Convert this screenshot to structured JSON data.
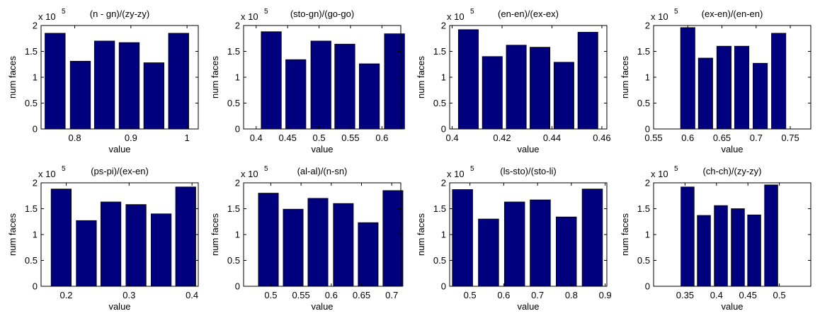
{
  "figure": {
    "bar_color": "#00007f",
    "background": "#ffffff",
    "axes_color": "#000000"
  },
  "chart_data": [
    {
      "type": "bar",
      "title": "(n - gn)/(zy-zy)",
      "xlabel": "value",
      "ylabel": "num faces",
      "y_multiplier_base": "x 10",
      "y_multiplier_exp": "5",
      "xlim": [
        0.74,
        1.02
      ],
      "ylim": [
        0,
        2
      ],
      "x_ticks": [
        0.8,
        0.9,
        1
      ],
      "x_tick_labels": [
        "0.8",
        "0.9",
        "1"
      ],
      "y_ticks": [
        0,
        0.5,
        1,
        1.5,
        2
      ],
      "y_tick_labels": [
        "0",
        "0.5",
        "1",
        "1.5",
        "2"
      ],
      "bar_width": 0.036,
      "x": [
        0.765,
        0.81,
        0.853,
        0.897,
        0.941,
        0.985
      ],
      "values": [
        1.85,
        1.31,
        1.7,
        1.67,
        1.28,
        1.85
      ]
    },
    {
      "type": "bar",
      "title": "(sto-gn)/(go-go)",
      "xlabel": "value",
      "ylabel": "num faces",
      "y_multiplier_base": "x 10",
      "y_multiplier_exp": "5",
      "xlim": [
        0.38,
        0.63
      ],
      "ylim": [
        0,
        2
      ],
      "x_ticks": [
        0.4,
        0.45,
        0.5,
        0.55,
        0.6
      ],
      "x_tick_labels": [
        "0.4",
        "0.45",
        "0.5",
        "0.55",
        "0.6"
      ],
      "y_ticks": [
        0,
        0.5,
        1,
        1.5,
        2
      ],
      "y_tick_labels": [
        "0",
        "0.5",
        "1",
        "1.5",
        "2"
      ],
      "bar_width": 0.032,
      "x": [
        0.424,
        0.463,
        0.503,
        0.541,
        0.58,
        0.62
      ],
      "values": [
        1.88,
        1.34,
        1.7,
        1.64,
        1.26,
        1.84
      ]
    },
    {
      "type": "bar",
      "title": "(en-en)/(ex-ex)",
      "xlabel": "value",
      "ylabel": "num faces",
      "y_multiplier_base": "x 10",
      "y_multiplier_exp": "5",
      "xlim": [
        0.399,
        0.462
      ],
      "ylim": [
        0,
        2
      ],
      "x_ticks": [
        0.4,
        0.42,
        0.44,
        0.46
      ],
      "x_tick_labels": [
        "0.4",
        "0.42",
        "0.44",
        "0.46"
      ],
      "y_ticks": [
        0,
        0.5,
        1,
        1.5,
        2
      ],
      "y_tick_labels": [
        "0",
        "0.5",
        "1",
        "1.5",
        "2"
      ],
      "bar_width": 0.008,
      "x": [
        0.4065,
        0.4161,
        0.4257,
        0.4352,
        0.4448,
        0.4544
      ],
      "values": [
        1.92,
        1.4,
        1.62,
        1.58,
        1.29,
        1.87
      ]
    },
    {
      "type": "bar",
      "title": "(ex-en)/(en-en)",
      "xlabel": "value",
      "ylabel": "num faces",
      "y_multiplier_base": "x 10",
      "y_multiplier_exp": "5",
      "xlim": [
        0.55,
        0.78
      ],
      "ylim": [
        0,
        2
      ],
      "x_ticks": [
        0.55,
        0.6,
        0.65,
        0.7,
        0.75
      ],
      "x_tick_labels": [
        "0.55",
        "0.6",
        "0.65",
        "0.7",
        "0.75"
      ],
      "y_ticks": [
        0,
        0.5,
        1,
        1.5,
        2
      ],
      "y_tick_labels": [
        "0",
        "0.5",
        "1",
        "1.5",
        "2"
      ],
      "bar_width": 0.021,
      "x": [
        0.6,
        0.626,
        0.653,
        0.679,
        0.706,
        0.733
      ],
      "values": [
        1.96,
        1.37,
        1.6,
        1.6,
        1.27,
        1.85
      ]
    },
    {
      "type": "bar",
      "title": "(ps-pi)/(ex-en)",
      "xlabel": "value",
      "ylabel": "num faces",
      "y_multiplier_base": "x 10",
      "y_multiplier_exp": "5",
      "xlim": [
        0.16,
        0.41
      ],
      "ylim": [
        0,
        2
      ],
      "x_ticks": [
        0.2,
        0.3,
        0.4
      ],
      "x_tick_labels": [
        "0.2",
        "0.3",
        "0.4"
      ],
      "y_ticks": [
        0,
        0.5,
        1,
        1.5,
        2
      ],
      "y_tick_labels": [
        "0",
        "0.5",
        "1",
        "1.5",
        "2"
      ],
      "bar_width": 0.032,
      "x": [
        0.192,
        0.232,
        0.271,
        0.311,
        0.351,
        0.39
      ],
      "values": [
        1.88,
        1.27,
        1.63,
        1.58,
        1.4,
        1.92
      ]
    },
    {
      "type": "bar",
      "title": "(al-al)/(n-sn)",
      "xlabel": "value",
      "ylabel": "num faces",
      "y_multiplier_base": "x 10",
      "y_multiplier_exp": "5",
      "xlim": [
        0.455,
        0.715
      ],
      "ylim": [
        0,
        2
      ],
      "x_ticks": [
        0.5,
        0.55,
        0.6,
        0.65,
        0.7
      ],
      "x_tick_labels": [
        "0.5",
        "0.55",
        "0.6",
        "0.65",
        "0.7"
      ],
      "y_ticks": [
        0,
        0.5,
        1,
        1.5,
        2
      ],
      "y_tick_labels": [
        "0",
        "0.5",
        "1",
        "1.5",
        "2"
      ],
      "bar_width": 0.033,
      "x": [
        0.496,
        0.537,
        0.578,
        0.62,
        0.661,
        0.702
      ],
      "values": [
        1.8,
        1.49,
        1.7,
        1.6,
        1.23,
        1.85
      ]
    },
    {
      "type": "bar",
      "title": "(ls-sto)/(sto-li)",
      "xlabel": "value",
      "ylabel": "num faces",
      "y_multiplier_base": "x 10",
      "y_multiplier_exp": "5",
      "xlim": [
        0.44,
        0.905
      ],
      "ylim": [
        0,
        2
      ],
      "x_ticks": [
        0.5,
        0.6,
        0.7,
        0.8,
        0.9
      ],
      "x_tick_labels": [
        "0.5",
        "0.6",
        "0.7",
        "0.8",
        "0.9"
      ],
      "y_ticks": [
        0,
        0.5,
        1,
        1.5,
        2
      ],
      "y_tick_labels": [
        "0",
        "0.5",
        "1",
        "1.5",
        "2"
      ],
      "bar_width": 0.06,
      "x": [
        0.478,
        0.555,
        0.632,
        0.708,
        0.785,
        0.862
      ],
      "values": [
        1.87,
        1.3,
        1.63,
        1.67,
        1.34,
        1.88
      ]
    },
    {
      "type": "bar",
      "title": "(ch-ch)/(zy-zy)",
      "xlabel": "value",
      "ylabel": "num faces",
      "y_multiplier_base": "x 10",
      "y_multiplier_exp": "5",
      "xlim": [
        0.3,
        0.55
      ],
      "ylim": [
        0,
        2
      ],
      "x_ticks": [
        0.35,
        0.4,
        0.45,
        0.5
      ],
      "x_tick_labels": [
        "0.35",
        "0.4",
        "0.45",
        "0.5"
      ],
      "y_ticks": [
        0,
        0.5,
        1,
        1.5,
        2
      ],
      "y_tick_labels": [
        "0",
        "0.5",
        "1",
        "1.5",
        "2"
      ],
      "bar_width": 0.021,
      "x": [
        0.354,
        0.38,
        0.407,
        0.434,
        0.46,
        0.487
      ],
      "values": [
        1.92,
        1.37,
        1.56,
        1.5,
        1.38,
        1.96
      ]
    }
  ]
}
